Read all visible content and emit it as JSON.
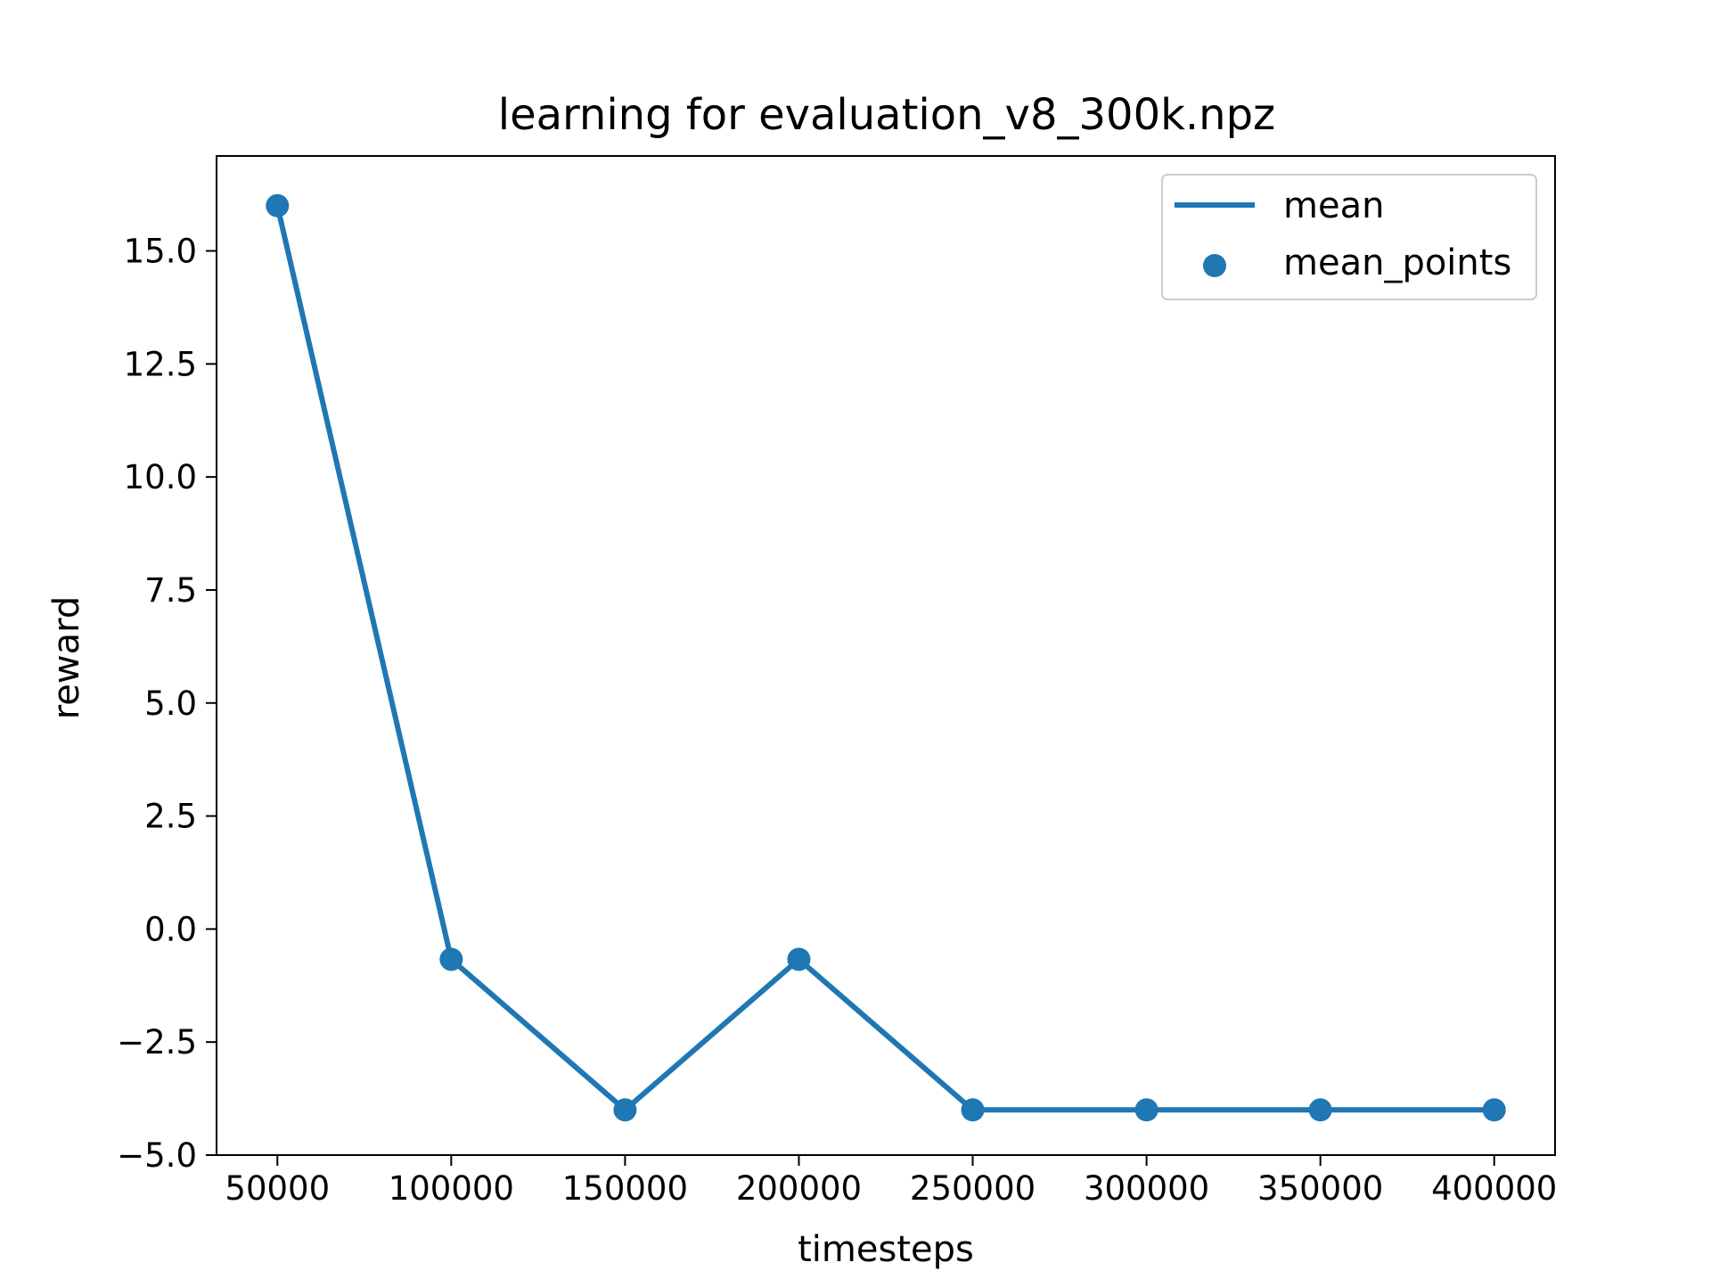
{
  "chart_data": {
    "type": "line",
    "title": "learning for evaluation_v8_300k.npz",
    "xlabel": "timesteps",
    "ylabel": "reward",
    "x": [
      50000,
      100000,
      150000,
      200000,
      250000,
      300000,
      350000,
      400000
    ],
    "series": [
      {
        "name": "mean",
        "kind": "line",
        "values": [
          16.0,
          -0.67,
          -4.0,
          -0.67,
          -4.0,
          -4.0,
          -4.0,
          -4.0
        ]
      },
      {
        "name": "mean_points",
        "kind": "scatter",
        "values": [
          16.0,
          -0.67,
          -4.0,
          -0.67,
          -4.0,
          -4.0,
          -4.0,
          -4.0
        ]
      }
    ],
    "xlim": [
      32500,
      417500
    ],
    "ylim": [
      -5.0,
      17.1
    ],
    "xticks": [
      50000,
      100000,
      150000,
      200000,
      250000,
      300000,
      350000,
      400000
    ],
    "xtick_labels": [
      "50000",
      "100000",
      "150000",
      "200000",
      "250000",
      "300000",
      "350000",
      "400000"
    ],
    "yticks": [
      -5.0,
      -2.5,
      0.0,
      2.5,
      5.0,
      7.5,
      10.0,
      12.5,
      15.0
    ],
    "ytick_labels": [
      "−5.0",
      "−2.5",
      "0.0",
      "2.5",
      "5.0",
      "7.5",
      "10.0",
      "12.5",
      "15.0"
    ],
    "grid": false,
    "legend_position": "top-right",
    "colors": {
      "series": "#1f77b4",
      "axes": "#000000",
      "legend_border": "#cccccc"
    }
  }
}
